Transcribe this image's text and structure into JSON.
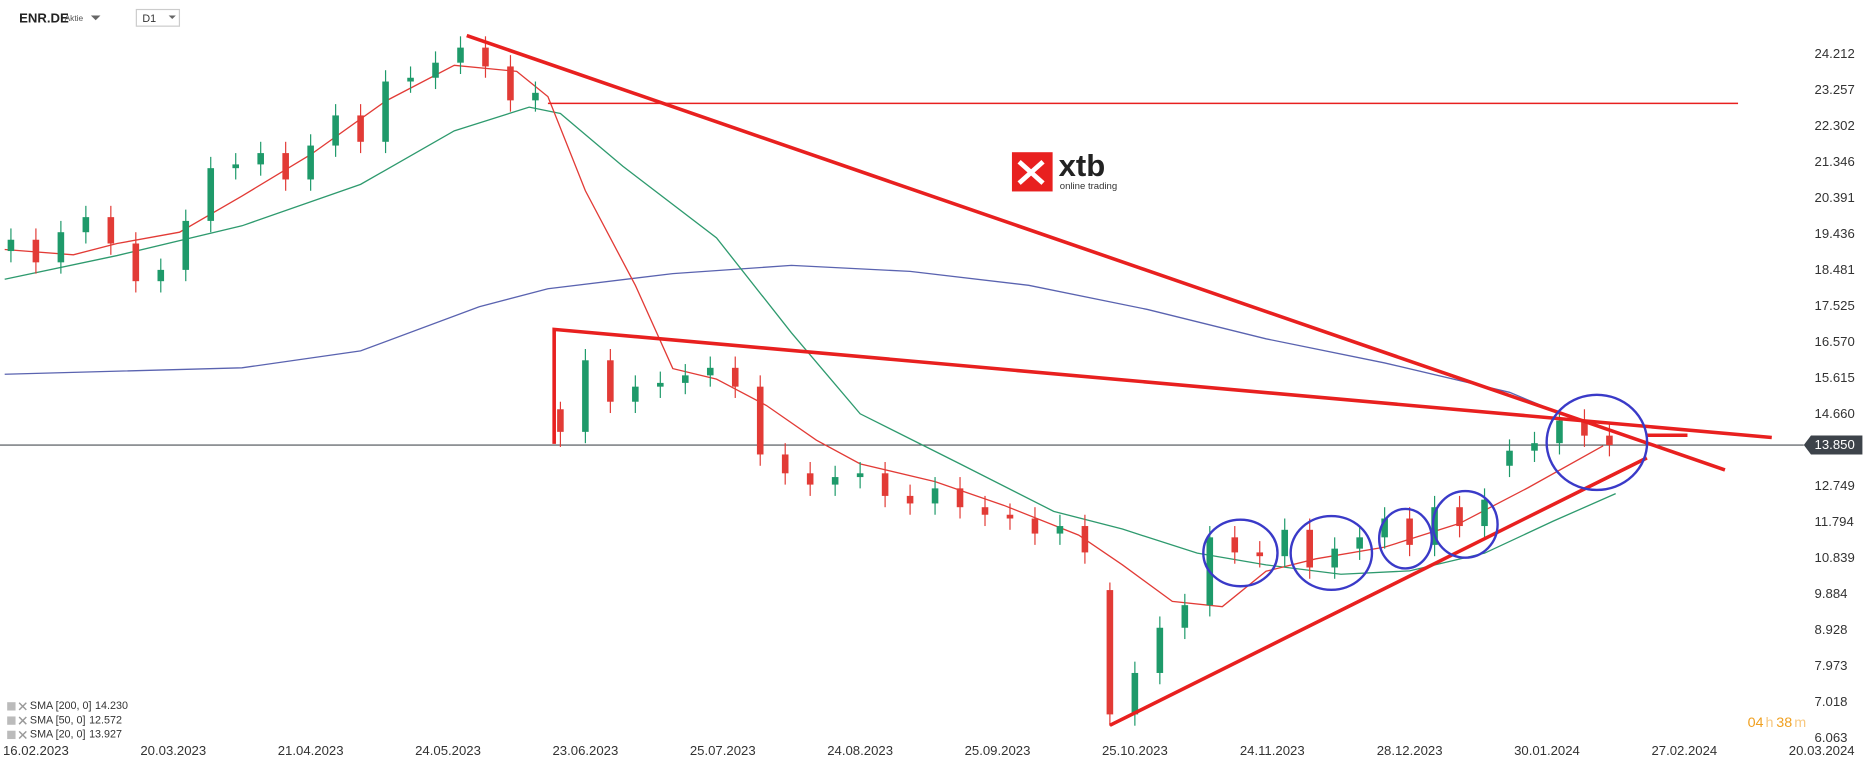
{
  "header": {
    "symbol": "ENR.DE",
    "instrument_type": "Aktie",
    "timeframe": "D1"
  },
  "logo": {
    "name": "xtb",
    "tagline": "online trading"
  },
  "timer": [
    "04",
    "h",
    "38",
    "m"
  ],
  "chart_data": {
    "type": "candlestick",
    "up_color": "#1e9a6a",
    "down_color": "#e23b36",
    "x": [
      -4,
      0,
      4,
      8,
      12,
      16,
      20,
      24,
      28,
      32,
      36,
      40,
      44,
      48,
      52,
      56,
      60,
      64,
      68,
      72,
      76,
      80,
      84,
      88,
      92,
      96,
      100,
      104,
      108,
      112,
      116,
      120,
      124,
      128,
      132,
      136,
      140,
      144,
      148,
      152,
      156,
      160,
      164,
      168,
      172,
      176,
      180,
      184,
      188,
      192,
      196,
      200,
      204,
      208,
      212,
      216,
      220,
      224,
      228,
      232,
      236,
      240,
      244,
      248,
      252
    ],
    "open": [
      19.0,
      19.3,
      18.7,
      19.5,
      19.9,
      19.2,
      18.2,
      18.5,
      19.8,
      21.2,
      21.3,
      21.6,
      20.9,
      21.8,
      22.6,
      21.9,
      23.5,
      23.6,
      24.0,
      24.4,
      23.9,
      23.0,
      14.8,
      14.2,
      16.1,
      15.0,
      15.4,
      15.5,
      15.7,
      15.9,
      15.4,
      13.6,
      13.1,
      12.8,
      13.0,
      13.1,
      12.5,
      12.3,
      12.7,
      12.2,
      12.0,
      11.9,
      11.5,
      11.7,
      10.0,
      6.7,
      7.8,
      9.0,
      9.6,
      11.4,
      11.0,
      10.9,
      11.6,
      10.6,
      11.1,
      11.4,
      11.9,
      11.2,
      12.2,
      11.7,
      13.3,
      13.7,
      13.9,
      14.5,
      14.1
    ],
    "high": [
      19.6,
      19.6,
      19.8,
      20.2,
      20.2,
      19.5,
      18.8,
      20.1,
      21.5,
      21.6,
      21.9,
      21.9,
      22.1,
      22.9,
      22.9,
      23.8,
      23.9,
      24.3,
      24.7,
      24.7,
      24.2,
      23.5,
      15.0,
      16.4,
      16.4,
      15.7,
      15.8,
      16.0,
      16.2,
      16.2,
      15.7,
      13.9,
      13.4,
      13.3,
      13.4,
      13.4,
      12.8,
      13.0,
      13.0,
      12.5,
      12.3,
      12.2,
      12.0,
      12.0,
      10.2,
      8.1,
      9.3,
      9.9,
      11.7,
      11.7,
      11.3,
      11.9,
      11.9,
      11.4,
      11.7,
      12.2,
      12.2,
      12.5,
      12.5,
      12.7,
      14.0,
      14.2,
      14.8,
      14.8,
      14.4
    ],
    "low": [
      18.7,
      18.4,
      18.4,
      19.2,
      18.9,
      17.9,
      17.9,
      18.2,
      19.5,
      20.9,
      21.0,
      20.6,
      20.6,
      21.5,
      21.6,
      21.6,
      23.2,
      23.3,
      23.7,
      23.6,
      22.7,
      22.7,
      13.8,
      13.9,
      14.7,
      14.7,
      15.1,
      15.2,
      15.4,
      15.1,
      13.3,
      12.8,
      12.5,
      12.5,
      12.7,
      12.2,
      12.0,
      12.0,
      11.9,
      11.7,
      11.6,
      11.2,
      11.2,
      10.7,
      6.4,
      6.4,
      7.5,
      8.7,
      9.3,
      10.7,
      10.6,
      10.6,
      10.3,
      10.3,
      10.8,
      11.1,
      10.9,
      10.9,
      11.4,
      11.4,
      13.0,
      13.4,
      13.6,
      13.8,
      13.55
    ],
    "close": [
      19.3,
      18.7,
      19.5,
      19.9,
      19.2,
      18.2,
      18.5,
      19.8,
      21.2,
      21.3,
      21.6,
      20.9,
      21.8,
      22.6,
      21.9,
      23.5,
      23.6,
      24.0,
      24.4,
      23.9,
      23.0,
      23.2,
      14.2,
      16.1,
      15.0,
      15.4,
      15.5,
      15.7,
      15.9,
      15.4,
      13.6,
      13.1,
      12.8,
      13.0,
      13.1,
      12.5,
      12.3,
      12.7,
      12.2,
      12.0,
      11.9,
      11.5,
      11.7,
      11.0,
      6.7,
      7.8,
      9.0,
      9.6,
      11.4,
      11.0,
      10.9,
      11.6,
      10.6,
      11.1,
      11.4,
      11.9,
      11.2,
      12.2,
      11.7,
      12.4,
      13.7,
      13.9,
      14.5,
      14.1,
      13.85
    ],
    "series": [
      {
        "name": "SMA [200, 0]",
        "legend_value": "14.230",
        "color": "#5a63b0",
        "x": [
          -5,
          33,
          52,
          71,
          82,
          102,
          121,
          140,
          159,
          178,
          197,
          216,
          236,
          243
        ],
        "values": [
          15.73,
          15.9,
          16.35,
          17.52,
          18.0,
          18.4,
          18.62,
          18.46,
          18.09,
          17.45,
          16.67,
          16.03,
          15.25,
          14.77
        ]
      },
      {
        "name": "SMA [50, 0]",
        "legend_value": "12.572",
        "color": "#2e9a6e",
        "x": [
          -5,
          13,
          33,
          52,
          67,
          79,
          84,
          94,
          109,
          121,
          132,
          148,
          163,
          174,
          186,
          197,
          209,
          220,
          232,
          243,
          253
        ],
        "values": [
          18.25,
          18.88,
          19.67,
          20.77,
          22.19,
          22.82,
          22.65,
          21.25,
          19.35,
          16.83,
          14.68,
          13.35,
          12.09,
          11.62,
          10.98,
          10.67,
          10.42,
          10.51,
          10.98,
          11.83,
          12.56
        ]
      },
      {
        "name": "SMA [20, 0]",
        "legend_value": "13.927",
        "color": "#e23b36",
        "x": [
          -5,
          6,
          13,
          23,
          33,
          44,
          56,
          67,
          77,
          82,
          88,
          96,
          102,
          109,
          117,
          125,
          132,
          144,
          155,
          167,
          174,
          182,
          190,
          197,
          205,
          216,
          228,
          239,
          251
        ],
        "values": [
          19.04,
          18.9,
          19.2,
          19.5,
          20.46,
          21.56,
          22.98,
          23.93,
          23.77,
          23.1,
          20.6,
          18.09,
          15.88,
          15.6,
          14.9,
          13.98,
          13.35,
          12.88,
          12.25,
          11.46,
          10.67,
          9.7,
          9.56,
          10.5,
          10.83,
          11.14,
          11.77,
          12.72,
          13.83
        ]
      }
    ],
    "trendlines": [
      {
        "x": [
          69,
          270.5
        ],
        "y": [
          24.72,
          13.19
        ],
        "color": "#e8201f",
        "width": 3
      },
      {
        "x": [
          82,
          272.6
        ],
        "y": [
          22.92,
          22.92
        ],
        "color": "#e8201f",
        "width": 1.2
      },
      {
        "x": [
          83,
          83,
          278
        ],
        "y": [
          13.88,
          16.92,
          14.05
        ],
        "color": "#e8201f",
        "width": 3
      },
      {
        "x": [
          172,
          258
        ],
        "y": [
          6.41,
          13.51
        ],
        "color": "#e8201f",
        "width": 3
      },
      {
        "x": [
          258,
          264.5
        ],
        "y": [
          14.11,
          14.11
        ],
        "color": "#e8201f",
        "width": 3
      }
    ],
    "last_price": {
      "value": 13.85,
      "label": "13.850"
    },
    "xlim": [
      -5.75,
      287
    ],
    "ylim": [
      5.935,
      25.664
    ],
    "xticks": [
      {
        "value": 0,
        "label": "16.02.2023"
      },
      {
        "value": 22,
        "label": "20.03.2023"
      },
      {
        "value": 44,
        "label": "21.04.2023"
      },
      {
        "value": 66,
        "label": "24.05.2023"
      },
      {
        "value": 88,
        "label": "23.06.2023"
      },
      {
        "value": 110,
        "label": "25.07.2023"
      },
      {
        "value": 132,
        "label": "24.08.2023"
      },
      {
        "value": 154,
        "label": "25.09.2023"
      },
      {
        "value": 176,
        "label": "25.10.2023"
      },
      {
        "value": 198,
        "label": "24.11.2023"
      },
      {
        "value": 220,
        "label": "28.12.2023"
      },
      {
        "value": 242,
        "label": "30.01.2024"
      },
      {
        "value": 264,
        "label": "27.02.2024"
      },
      {
        "value": 286,
        "label": "20.03.2024"
      }
    ],
    "yticks": [
      24.212,
      23.257,
      22.302,
      21.346,
      20.391,
      19.436,
      18.481,
      17.525,
      {
        "value": 16.57,
        "label": "16.570"
      },
      15.615,
      {
        "value": 14.66,
        "label": "14.660"
      },
      12.749,
      11.794,
      10.839,
      9.884,
      8.928,
      7.973,
      7.018,
      6.063
    ]
  }
}
